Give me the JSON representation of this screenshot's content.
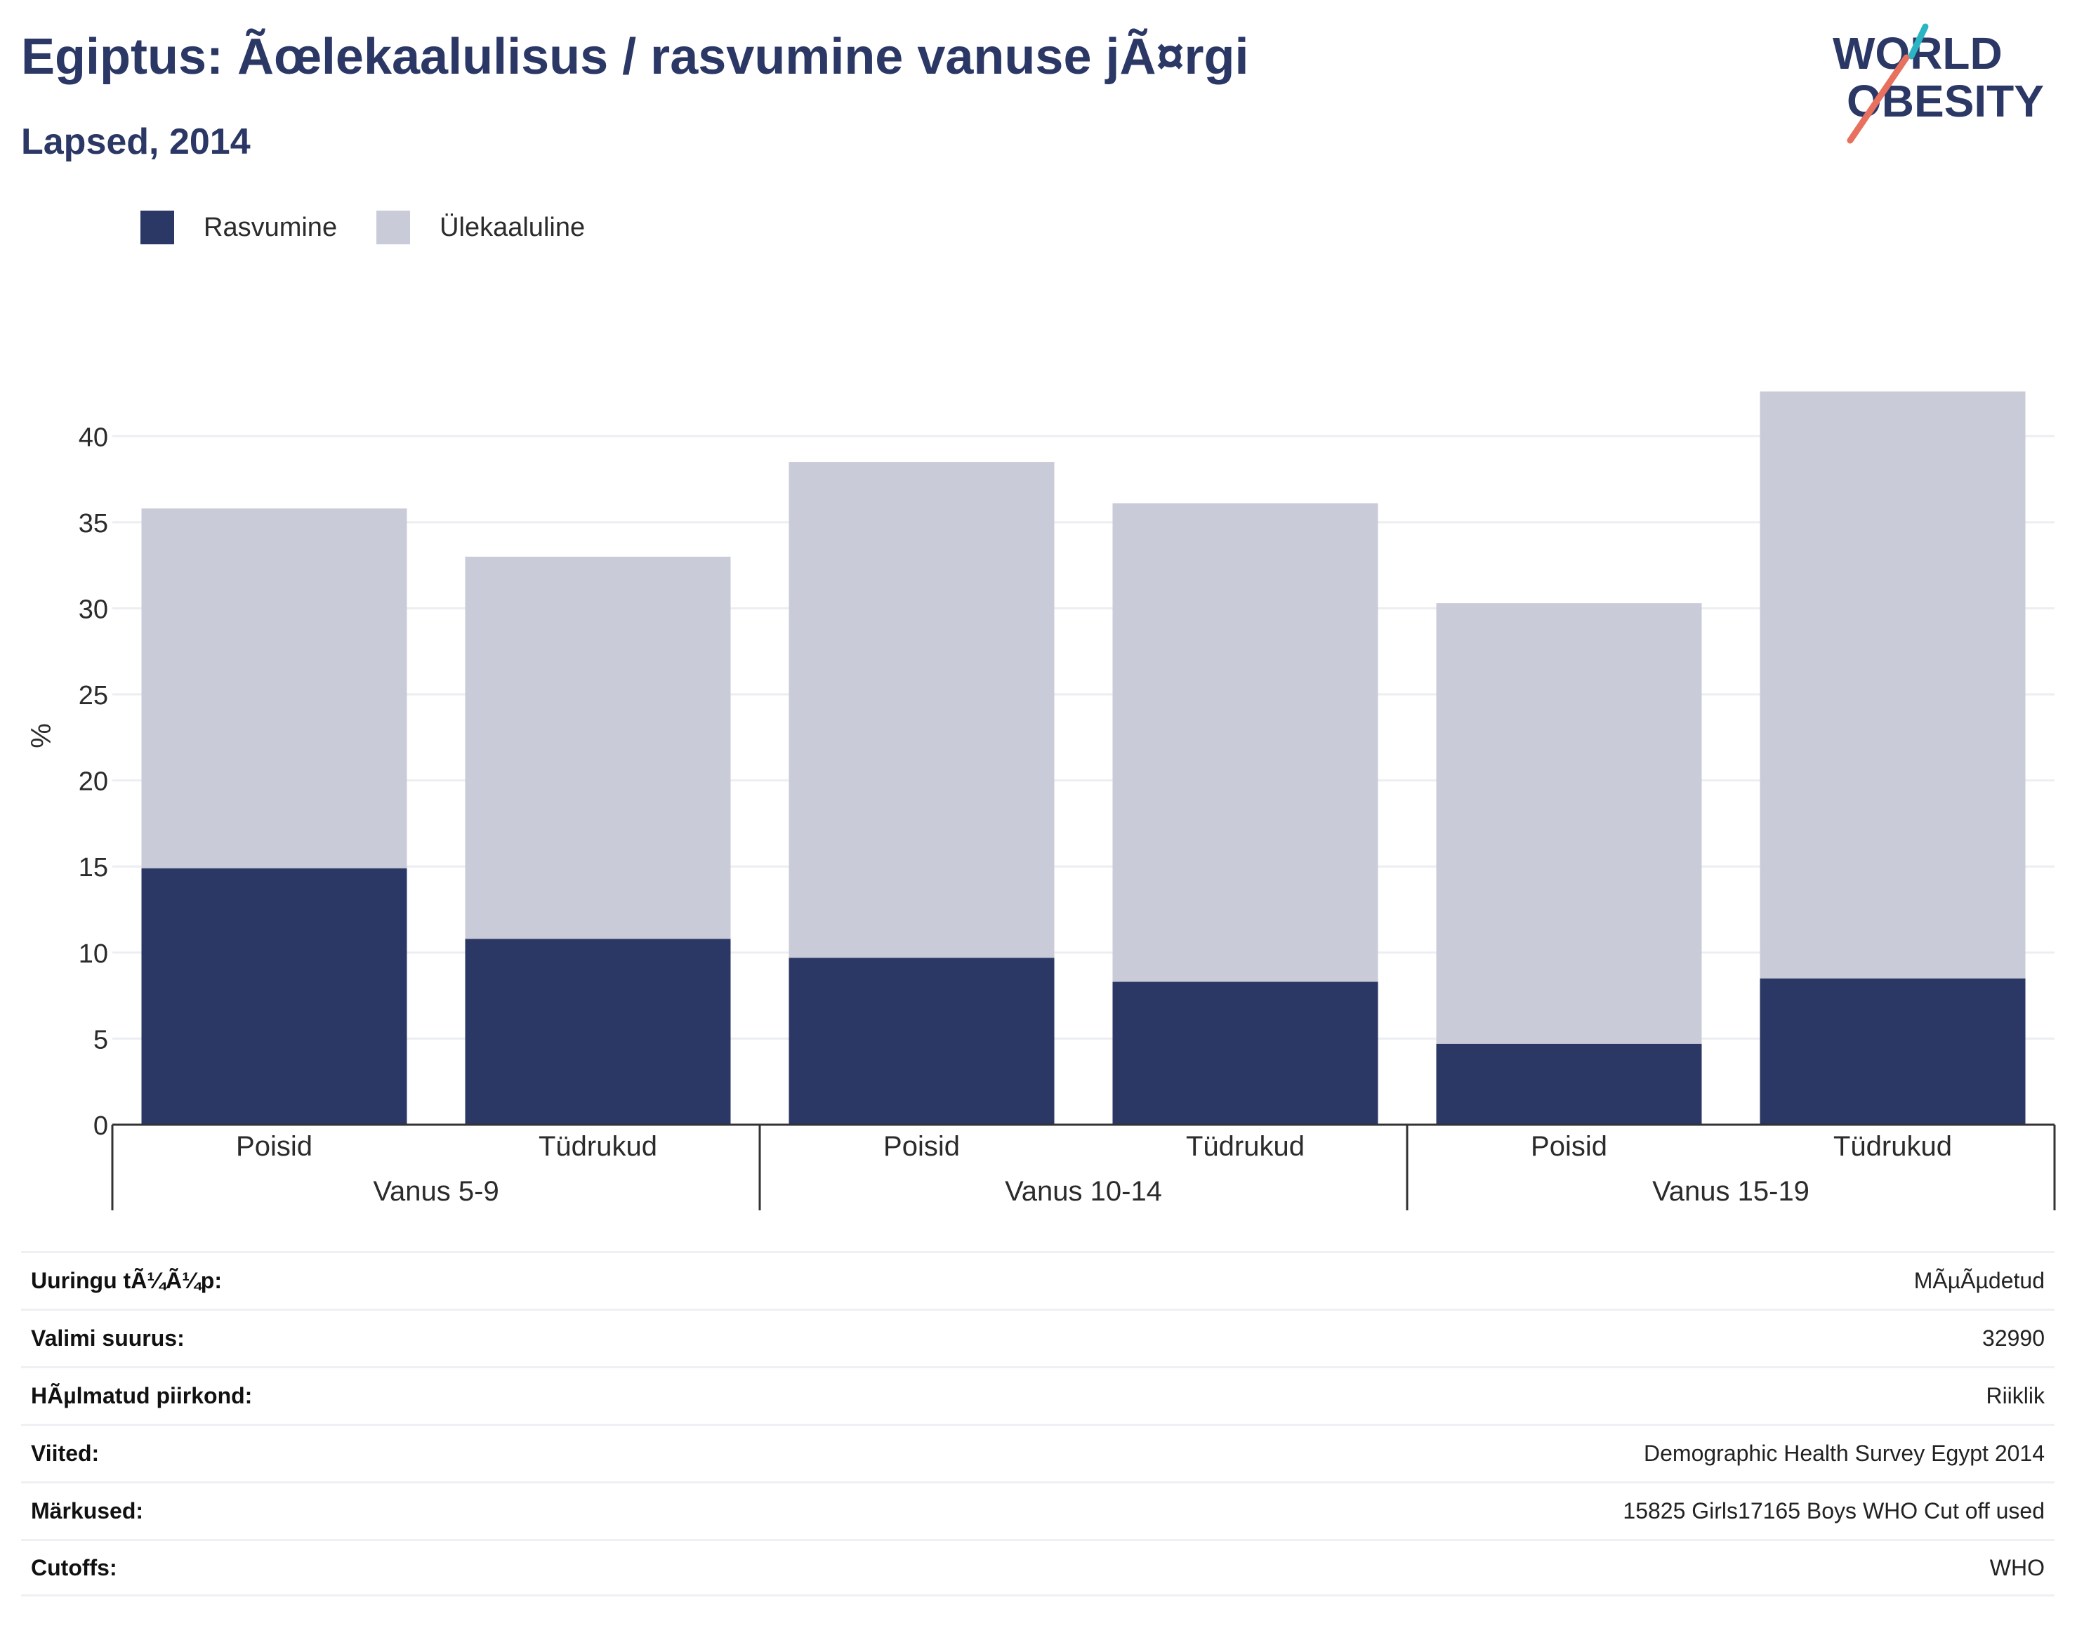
{
  "header": {
    "title": "Egiptus: Ãœlekaalulisus / rasvumine vanuse jÃ¤rgi",
    "subtitle": "Lapsed, 2014"
  },
  "logo": {
    "line1": "WORLD",
    "line2": "OBESITY"
  },
  "legend": [
    {
      "label": "Rasvumine",
      "color": "#2b3765"
    },
    {
      "label": "Ülekaaluline",
      "color": "#cacbd8"
    }
  ],
  "chart_data": {
    "type": "bar",
    "stacked": true,
    "ylabel": "%",
    "ylim": [
      0,
      42.5
    ],
    "yticks": [
      0,
      5,
      10,
      15,
      20,
      25,
      30,
      35,
      40
    ],
    "grid": true,
    "legend_position": "top-left",
    "groups": [
      {
        "label": "Vanus 5-9",
        "categories": [
          "Poisid",
          "Tüdrukud"
        ]
      },
      {
        "label": "Vanus 10-14",
        "categories": [
          "Poisid",
          "Tüdrukud"
        ]
      },
      {
        "label": "Vanus 15-19",
        "categories": [
          "Poisid",
          "Tüdrukud"
        ]
      }
    ],
    "categories": [
      "Poisid",
      "Tüdrukud",
      "Poisid",
      "Tüdrukud",
      "Poisid",
      "Tüdrukud"
    ],
    "series": [
      {
        "name": "Rasvumine",
        "color": "#2b3765",
        "values": [
          14.9,
          10.8,
          9.7,
          8.3,
          4.7,
          8.5
        ]
      },
      {
        "name": "Ülekaaluline",
        "color": "#cacbd8",
        "values": [
          20.9,
          22.2,
          28.8,
          27.8,
          25.6,
          34.1
        ]
      }
    ]
  },
  "info": [
    {
      "label": "Uuringu tÃ¼Ã¼p:",
      "value": "MÃµÃµdetud"
    },
    {
      "label": "Valimi suurus:",
      "value": "32990"
    },
    {
      "label": "HÃµlmatud piirkond:",
      "value": "Riiklik"
    },
    {
      "label": "Viited:",
      "value": "Demographic Health Survey Egypt 2014"
    },
    {
      "label": "Märkused:",
      "value": "15825 Girls17165 Boys WHO Cut off used"
    },
    {
      "label": "Cutoffs:",
      "value": "WHO"
    }
  ]
}
